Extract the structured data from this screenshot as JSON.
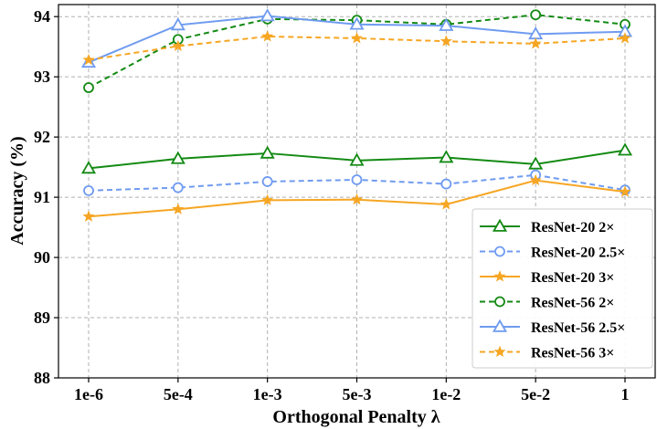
{
  "chart_data": {
    "type": "line",
    "title": "",
    "xlabel": "Orthogonal Penalty λ",
    "ylabel": "Accuracy (%)",
    "categories": [
      "1e-6",
      "5e-4",
      "1e-3",
      "5e-3",
      "1e-2",
      "5e-2",
      "1"
    ],
    "ylim": [
      88,
      94.2
    ],
    "yticks": [
      88,
      89,
      90,
      91,
      92,
      93,
      94
    ],
    "grid": true,
    "legend_position": "bottom-right",
    "series": [
      {
        "name": "ResNet-20 2×",
        "values": [
          91.48,
          91.64,
          91.73,
          91.61,
          91.66,
          91.55,
          91.78
        ],
        "color": "#138a13",
        "dash": "solid",
        "marker": "triangle"
      },
      {
        "name": "ResNet-20 2.5×",
        "values": [
          91.11,
          91.16,
          91.26,
          91.29,
          91.22,
          91.37,
          91.12
        ],
        "color": "#6f9bf0",
        "dash": "dashed",
        "marker": "circle"
      },
      {
        "name": "ResNet-20 3×",
        "values": [
          90.68,
          90.8,
          90.95,
          90.96,
          90.88,
          91.28,
          91.09
        ],
        "color": "#f6a623",
        "dash": "solid",
        "marker": "star"
      },
      {
        "name": "ResNet-56 2×",
        "values": [
          92.82,
          93.62,
          93.96,
          93.94,
          93.87,
          94.03,
          93.87
        ],
        "color": "#138a13",
        "dash": "dashed",
        "marker": "circle"
      },
      {
        "name": "ResNet-56 2.5×",
        "values": [
          93.24,
          93.86,
          94.01,
          93.87,
          93.85,
          93.71,
          93.75
        ],
        "color": "#6f9bf0",
        "dash": "solid",
        "marker": "triangle"
      },
      {
        "name": "ResNet-56 3×",
        "values": [
          93.28,
          93.51,
          93.67,
          93.64,
          93.59,
          93.55,
          93.64
        ],
        "color": "#f6a623",
        "dash": "dashed",
        "marker": "star"
      }
    ]
  }
}
